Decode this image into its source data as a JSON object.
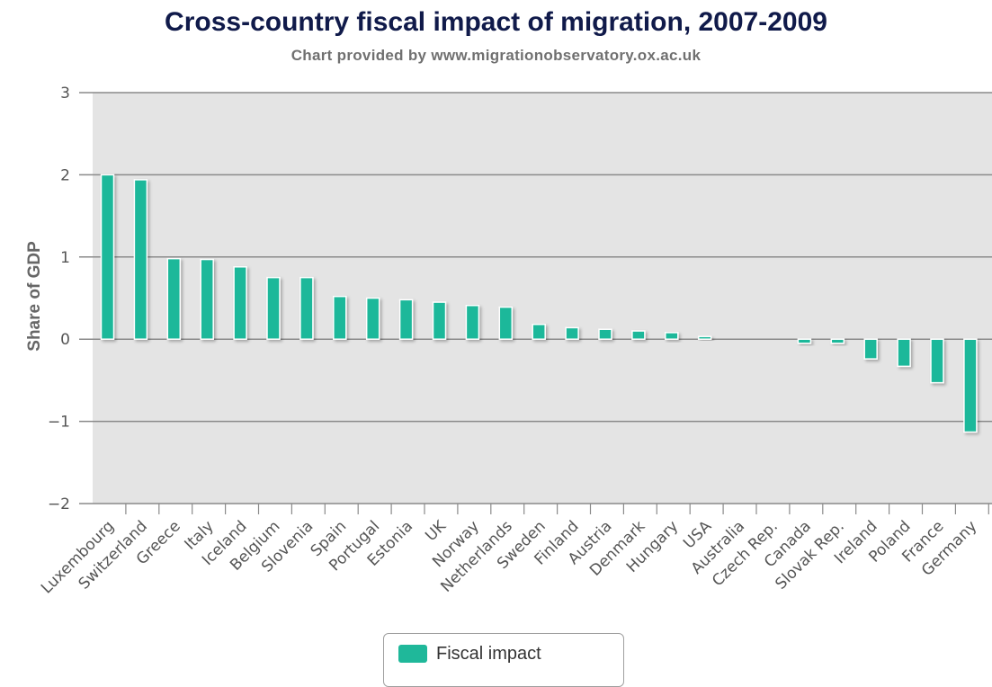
{
  "chart_data": {
    "type": "bar",
    "title": "Cross-country fiscal impact of migration, 2007-2009",
    "subtitle": "Chart provided by www.migrationobservatory.ox.ac.uk",
    "xlabel": "",
    "ylabel": "Share of GDP",
    "ylim": [
      -2,
      3
    ],
    "yticks": [
      "3",
      "2",
      "1",
      "0",
      "−1",
      "−2"
    ],
    "ytick_values": [
      3,
      2,
      1,
      0,
      -1,
      -2
    ],
    "grid": true,
    "legend_position": "bottom-center",
    "categories": [
      "Luxembourg",
      "Switzerland",
      "Greece",
      "Italy",
      "Iceland",
      "Belgium",
      "Slovenia",
      "Spain",
      "Portugal",
      "Estonia",
      "UK",
      "Norway",
      "Netherlands",
      "Sweden",
      "Finland",
      "Austria",
      "Denmark",
      "Hungary",
      "USA",
      "Australia",
      "Czech Rep.",
      "Canada",
      "Slovak Rep.",
      "Ireland",
      "Poland",
      "France",
      "Germany"
    ],
    "series": [
      {
        "name": "Fiscal impact",
        "color": "#1fb89a",
        "values": [
          2.0,
          1.94,
          0.98,
          0.97,
          0.88,
          0.75,
          0.75,
          0.52,
          0.5,
          0.48,
          0.45,
          0.41,
          0.39,
          0.18,
          0.14,
          0.12,
          0.1,
          0.08,
          0.03,
          0.0,
          0.0,
          -0.05,
          -0.05,
          -0.24,
          -0.33,
          -0.53,
          -1.13
        ]
      }
    ],
    "colors": {
      "plot_background": "#e4e4e4",
      "gridline": "#8a8a8a",
      "bar": "#1fb89a",
      "title": "#101a4a"
    }
  }
}
